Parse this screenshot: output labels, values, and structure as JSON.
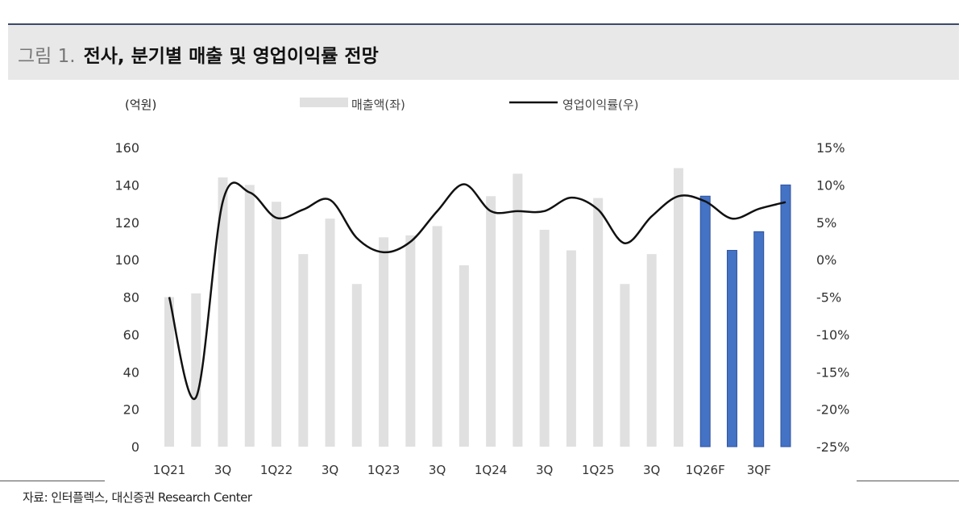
{
  "header": {
    "figure_number": "그림 1.",
    "title": "전사, 분기별 매출 및 영업이익률 전망"
  },
  "source": "자료: 인터플렉스, 대신증권 Research Center",
  "chart_data": {
    "type": "bar+line",
    "left_unit": "(억원)",
    "categories": [
      "1Q21",
      "2Q21",
      "3Q21",
      "4Q21",
      "1Q22",
      "2Q22",
      "3Q22",
      "4Q22",
      "1Q23",
      "2Q23",
      "3Q23",
      "4Q23",
      "1Q24",
      "2Q24",
      "3Q24",
      "4Q24",
      "1Q25",
      "2Q25",
      "3Q25",
      "4Q25",
      "1Q26F",
      "2Q26F",
      "3Q26F",
      "4Q26F"
    ],
    "x_tick_labels": [
      "1Q21",
      "",
      "3Q",
      "",
      "1Q22",
      "",
      "3Q",
      "",
      "1Q23",
      "",
      "3Q",
      "",
      "1Q24",
      "",
      "3Q",
      "",
      "1Q25",
      "",
      "3Q",
      "",
      "1Q26F",
      "",
      "3QF",
      ""
    ],
    "series": [
      {
        "name": "매출액(좌)",
        "type": "bar",
        "axis": "left",
        "values": [
          80,
          82,
          144,
          140,
          131,
          103,
          122,
          87,
          112,
          113,
          118,
          97,
          134,
          146,
          116,
          105,
          133,
          87,
          103,
          149,
          134,
          105,
          115,
          140
        ],
        "forecast_from_index": 20
      },
      {
        "name": "영업이익률(우)",
        "type": "line",
        "axis": "right",
        "values": [
          -5.0,
          -18.4,
          7.8,
          9.0,
          5.6,
          6.7,
          8.0,
          2.9,
          1.0,
          2.4,
          6.5,
          10.1,
          6.5,
          6.5,
          6.5,
          8.3,
          6.7,
          2.2,
          5.8,
          8.5,
          7.8,
          5.5,
          6.8,
          7.7
        ]
      }
    ],
    "left_axis": {
      "ylim": [
        0,
        160
      ],
      "ticks": [
        "0",
        "20",
        "40",
        "60",
        "80",
        "100",
        "120",
        "140",
        "160"
      ]
    },
    "right_axis": {
      "ylim": [
        -25,
        15
      ],
      "ticks": [
        "-25%",
        "-20%",
        "-15%",
        "-10%",
        "-5%",
        "0%",
        "5%",
        "10%",
        "15%"
      ]
    },
    "legend_placement": "top",
    "grid": false,
    "colors": {
      "bar_actual": "#e0e0e0",
      "bar_forecast": "#4472c4",
      "bar_forecast_border": "#2f54a0",
      "line": "#111111"
    }
  }
}
